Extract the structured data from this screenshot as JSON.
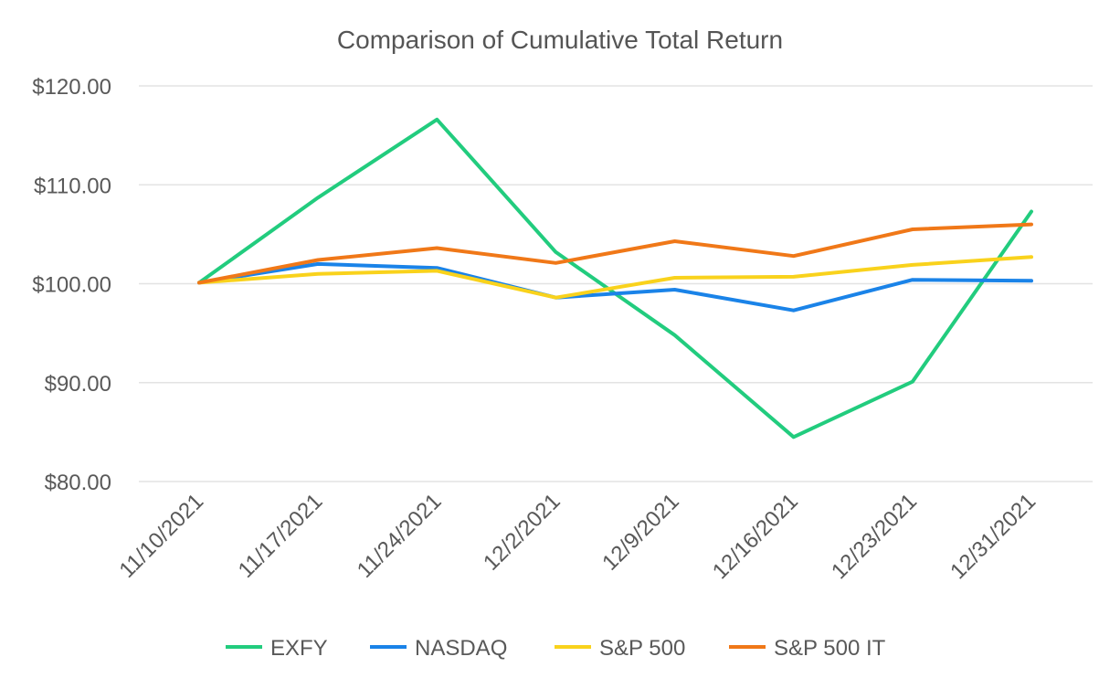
{
  "chart_data": {
    "type": "line",
    "title": "Comparison of Cumulative Total Return",
    "xlabel": "",
    "ylabel": "",
    "categories": [
      "11/10/2021",
      "11/17/2021",
      "11/24/2021",
      "12/2/2021",
      "12/9/2021",
      "12/16/2021",
      "12/23/2021",
      "12/31/2021"
    ],
    "ylim": [
      80,
      120
    ],
    "yticks": [
      80,
      90,
      100,
      110,
      120
    ],
    "ytick_labels": [
      "$80.00",
      "$90.00",
      "$100.00",
      "$110.00",
      "$120.00"
    ],
    "grid": true,
    "legend_position": "bottom",
    "series": [
      {
        "name": "EXFY",
        "color": "#22cc7e",
        "values": [
          100.1,
          108.7,
          116.6,
          103.2,
          94.8,
          84.5,
          90.1,
          107.3
        ]
      },
      {
        "name": "NASDAQ",
        "color": "#1a83e8",
        "values": [
          100.1,
          102.0,
          101.6,
          98.6,
          99.4,
          97.3,
          100.4,
          100.3
        ]
      },
      {
        "name": "S&P 500",
        "color": "#f9d21c",
        "values": [
          100.1,
          101.0,
          101.3,
          98.6,
          100.6,
          100.7,
          101.9,
          102.7
        ]
      },
      {
        "name": "S&P 500 IT",
        "color": "#f07818",
        "values": [
          100.1,
          102.4,
          103.6,
          102.1,
          104.3,
          102.8,
          105.5,
          106.0
        ]
      }
    ]
  }
}
